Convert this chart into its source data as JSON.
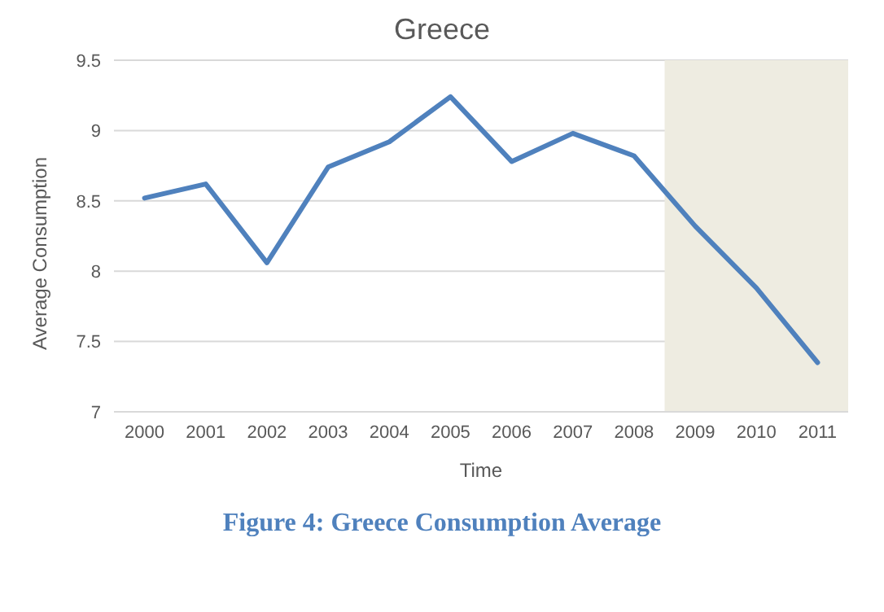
{
  "chart_data": {
    "type": "line",
    "title": "Greece",
    "xlabel": "Time",
    "ylabel": "Average Consumption",
    "x": [
      2000,
      2001,
      2002,
      2003,
      2004,
      2005,
      2006,
      2007,
      2008,
      2009,
      2010,
      2011
    ],
    "series": [
      {
        "color": "#4f81bd",
        "values": [
          8.52,
          8.62,
          8.06,
          8.74,
          8.92,
          9.24,
          8.78,
          8.98,
          8.82,
          8.32,
          7.88,
          7.35
        ]
      }
    ],
    "xlim": [
      1999.5,
      2011.5
    ],
    "xticks": [
      2000,
      2001,
      2002,
      2003,
      2004,
      2005,
      2006,
      2007,
      2008,
      2009,
      2010,
      2011
    ],
    "ylim": [
      7,
      9.5
    ],
    "yticks": [
      7,
      7.5,
      8,
      8.5,
      9,
      9.5
    ],
    "grid": "y",
    "marker": "none",
    "line_style": "solid",
    "bands": [
      {
        "axis": "x",
        "from": 2008.5,
        "to": 2011.5,
        "color": "#eeece1"
      }
    ],
    "annotations": [
      "Figure 4: Greece Consumption Average"
    ]
  }
}
